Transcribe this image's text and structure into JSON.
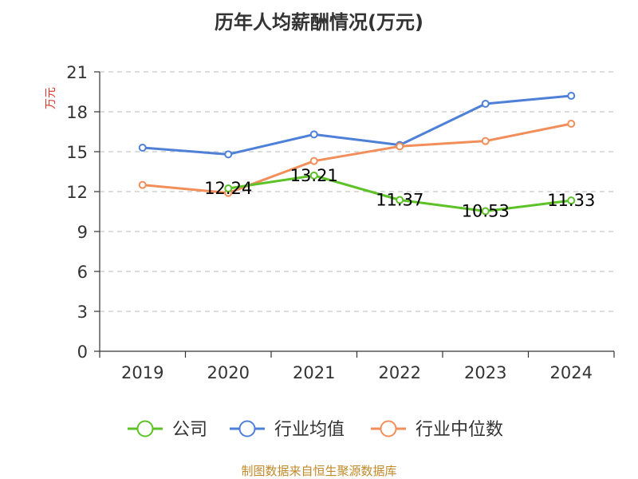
{
  "chart_data": {
    "type": "line",
    "title": "历年人均薪酬情况(万元)",
    "ylabel": "万元",
    "xlabel": "",
    "categories": [
      "2019",
      "2020",
      "2021",
      "2022",
      "2023",
      "2024"
    ],
    "ylim": [
      0,
      21
    ],
    "yticks": [
      0,
      3,
      6,
      9,
      12,
      15,
      18,
      21
    ],
    "grid": true,
    "legend_position": "bottom",
    "series": [
      {
        "name": "公司",
        "color": "#5cc227",
        "values": [
          null,
          12.24,
          13.21,
          11.37,
          10.53,
          11.33
        ],
        "labels": [
          "",
          "12.24",
          "13.21",
          "11.37",
          "10.53",
          "11.33"
        ]
      },
      {
        "name": "行业均值",
        "color": "#4e80d8",
        "values": [
          15.3,
          14.8,
          16.3,
          15.5,
          18.6,
          19.2
        ]
      },
      {
        "name": "行业中位数",
        "color": "#f28e5a",
        "values": [
          12.5,
          11.9,
          14.3,
          15.4,
          15.8,
          17.1
        ]
      }
    ],
    "source": "制图数据来自恒生聚源数据库",
    "colors": {
      "axis": "#333333",
      "grid": "#c8c8c8",
      "unit": "#e0352b",
      "source": "#c08a2a"
    }
  }
}
